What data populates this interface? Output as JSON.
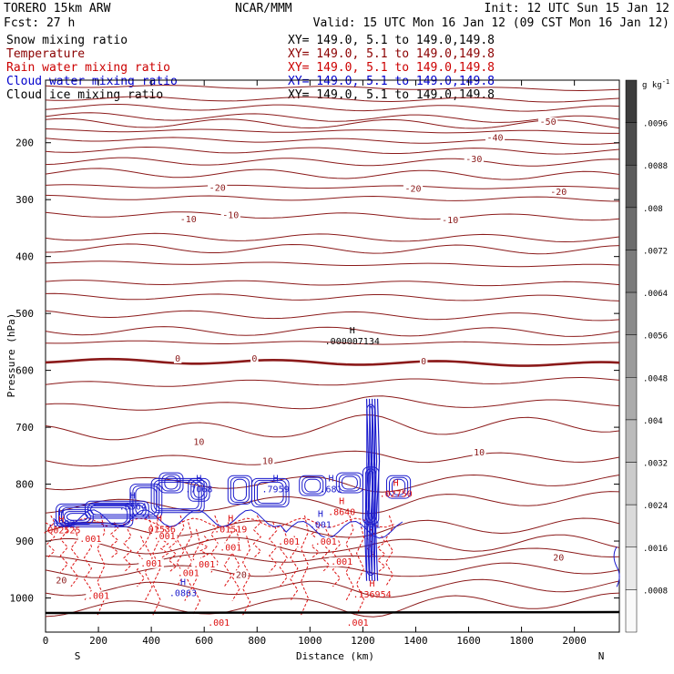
{
  "header": {
    "model": "TORERO  15km ARW",
    "center": "NCAR/MMM",
    "init": "Init: 12 UTC Sun 15 Jan 12",
    "fcst": "Fcst:    27 h",
    "valid": "Valid: 15 UTC Mon 16 Jan 12 (09 CST Mon 16 Jan 12)"
  },
  "legend": [
    {
      "label": "Snow mixing ratio",
      "xy": "XY= 149.0,  5.1 to 149.0,149.8",
      "color": "#000000"
    },
    {
      "label": "Temperature",
      "xy": "XY= 149.0,  5.1 to 149.0,149.8",
      "color": "#8b0000"
    },
    {
      "label": "Rain water mixing ratio",
      "xy": "XY= 149.0,  5.1 to 149.0,149.8",
      "color": "#cc0000"
    },
    {
      "label": "Cloud water mixing ratio",
      "xy": "XY= 149.0,  5.1 to 149.0,149.8",
      "color": "#0000cc"
    },
    {
      "label": "Cloud ice mixing ratio",
      "xy": "XY= 149.0,  5.1 to 149.0,149.8",
      "color": "#000000"
    }
  ],
  "chart_data": {
    "type": "cross-section contour",
    "xlabel": "Distance (km)",
    "ylabel": "Pressure (hPa)",
    "xlim": [
      0,
      2170
    ],
    "ylim": [
      1060,
      90
    ],
    "x_ticks": [
      0,
      200,
      400,
      600,
      800,
      1000,
      1200,
      1400,
      1600,
      1800,
      2000
    ],
    "y_ticks": [
      200,
      300,
      400,
      500,
      600,
      700,
      800,
      900,
      1000
    ],
    "south_label": "S",
    "north_label": "N",
    "colorbar": {
      "unit": "g kg",
      "unit_exp": "-1",
      "ticks": [
        ".0096",
        ".0088",
        ".008",
        ".0072",
        ".0064",
        ".0056",
        ".0048",
        ".004",
        ".0032",
        ".0024",
        ".0016",
        ".0008"
      ]
    },
    "temperature_contours": {
      "pressures": [
        100,
        122,
        137,
        153,
        165,
        178,
        193,
        212,
        232,
        252,
        276,
        296,
        325,
        365,
        385,
        410,
        445,
        470,
        500,
        530,
        550,
        583,
        625,
        665,
        710,
        760,
        800,
        840,
        880,
        910,
        935,
        955,
        985,
        1020
      ],
      "labels": [
        {
          "text": "-50",
          "x": 1900,
          "p": 162
        },
        {
          "text": "-40",
          "x": 1700,
          "p": 190
        },
        {
          "text": "-30",
          "x": 1620,
          "p": 228
        },
        {
          "text": "-20",
          "x": 650,
          "p": 278
        },
        {
          "text": "-20",
          "x": 1390,
          "p": 280
        },
        {
          "text": "-20",
          "x": 1940,
          "p": 285
        },
        {
          "text": "-10",
          "x": 540,
          "p": 333
        },
        {
          "text": "-10",
          "x": 700,
          "p": 326
        },
        {
          "text": "-10",
          "x": 1530,
          "p": 335
        },
        {
          "text": "0",
          "x": 500,
          "p": 578
        },
        {
          "text": "0",
          "x": 790,
          "p": 578
        },
        {
          "text": "0",
          "x": 1430,
          "p": 583
        },
        {
          "text": "10",
          "x": 580,
          "p": 725
        },
        {
          "text": "10",
          "x": 840,
          "p": 758
        },
        {
          "text": "10",
          "x": 1640,
          "p": 743
        },
        {
          "text": "20",
          "x": 60,
          "p": 968
        },
        {
          "text": "20",
          "x": 740,
          "p": 958
        },
        {
          "text": "20",
          "x": 1940,
          "p": 928
        }
      ]
    },
    "cloud_water_maxima": [
      {
        "text": "H",
        "value": ".6564",
        "x": 330,
        "p": 830
      },
      {
        "text": "H",
        "value": ".7068",
        "x": 580,
        "p": 800
      },
      {
        "text": "H",
        "value": ".7959",
        "x": 870,
        "p": 800
      },
      {
        "text": "H",
        "value": ".681",
        "x": 1080,
        "p": 800
      },
      {
        "text": "H",
        "value": ".001",
        "x": 1040,
        "p": 862
      },
      {
        "text": "H",
        "value": ".001",
        "x": 1225,
        "p": 862
      },
      {
        "text": "H",
        "value": ".0863",
        "x": 520,
        "p": 982
      },
      {
        "text": "H",
        "value": ".0392",
        "x": 60,
        "p": 860
      }
    ],
    "rain_water_maxima": [
      {
        "text": "H",
        "value": ".002525",
        "x": 60,
        "p": 872
      },
      {
        "text": "H",
        "value": ".01536",
        "x": 430,
        "p": 870
      },
      {
        "text": "H",
        "value": ".01519",
        "x": 700,
        "p": 870
      },
      {
        "text": "H",
        "value": ".8640",
        "x": 1120,
        "p": 840
      },
      {
        "text": "H",
        "value": ".02750",
        "x": 1325,
        "p": 808
      },
      {
        "text": "H",
        "value": ".136954",
        "x": 1235,
        "p": 985
      }
    ],
    "rain_water_labels": [
      {
        "text": ".001",
        "x": 170,
        "p": 895
      },
      {
        "text": ".001",
        "x": 400,
        "p": 938
      },
      {
        "text": ".001",
        "x": 450,
        "p": 890
      },
      {
        "text": ".001",
        "x": 540,
        "p": 955
      },
      {
        "text": ".001",
        "x": 600,
        "p": 940
      },
      {
        "text": ".001",
        "x": 700,
        "p": 910
      },
      {
        "text": ".001",
        "x": 920,
        "p": 900
      },
      {
        "text": ".001",
        "x": 1060,
        "p": 900
      },
      {
        "text": ".001",
        "x": 1120,
        "p": 935
      },
      {
        "text": ".001",
        "x": 200,
        "p": 995
      },
      {
        "text": ".001",
        "x": 655,
        "p": 1042
      },
      {
        "text": ".001",
        "x": 1180,
        "p": 1042
      }
    ],
    "snow_maximum": {
      "text": "H",
      "value": ".000007134",
      "x": 1160,
      "p": 540
    }
  }
}
